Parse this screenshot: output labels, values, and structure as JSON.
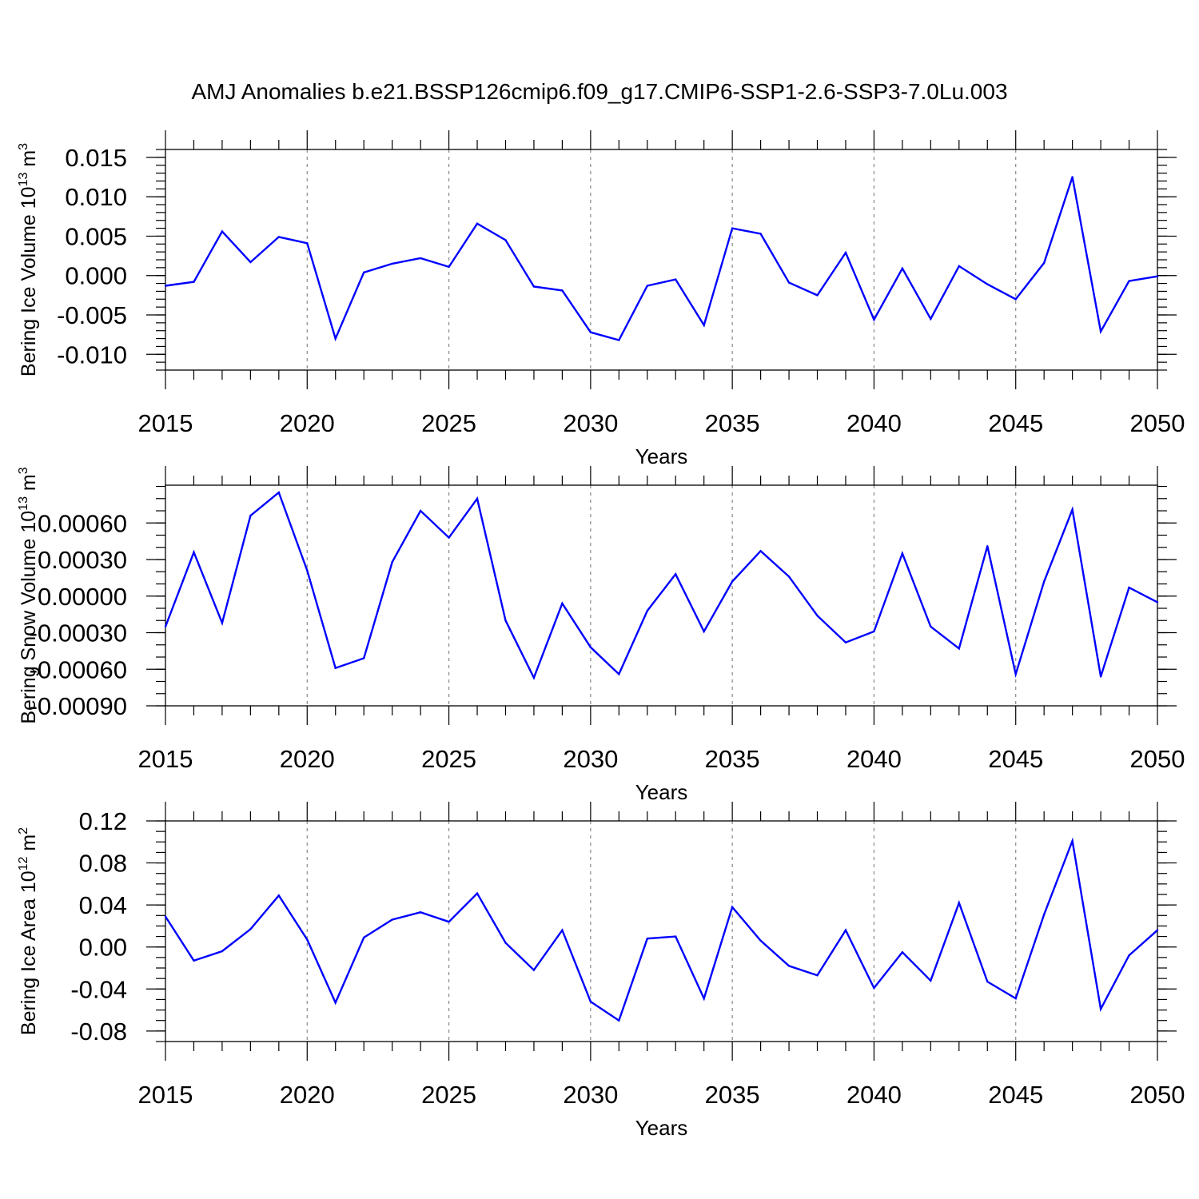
{
  "title": "AMJ Anomalies b.e21.BSSP126cmip6.f09_g17.CMIP6-SSP1-2.6-SSP3-7.0Lu.003",
  "colors": {
    "line": "#0000ff",
    "axis": "#000000",
    "grid": "#888888"
  },
  "chart_data": [
    {
      "type": "line",
      "ylabel": "Bering Ice Volume 10",
      "ylabel_sup": "13",
      "ylabel_unit": " m",
      "ylabel_unit_sup": "3",
      "xlabel": "Years",
      "xlim": [
        2015,
        2050
      ],
      "ylim": [
        -0.012,
        0.016
      ],
      "x_ticks": [
        "2015",
        "2020",
        "2025",
        "2030",
        "2035",
        "2040",
        "2045",
        "2050"
      ],
      "y_ticks": [
        "0.015",
        "0.010",
        "0.005",
        "0.000",
        "-0.005",
        "-0.010"
      ],
      "y_tick_values": [
        0.015,
        0.01,
        0.005,
        0.0,
        -0.005,
        -0.01
      ],
      "y_minor_step": 0.001,
      "x": [
        2015,
        2016,
        2017,
        2018,
        2019,
        2020,
        2021,
        2022,
        2023,
        2024,
        2025,
        2026,
        2027,
        2028,
        2029,
        2030,
        2031,
        2032,
        2033,
        2034,
        2035,
        2036,
        2037,
        2038,
        2039,
        2040,
        2041,
        2042,
        2043,
        2044,
        2045,
        2046,
        2047,
        2048,
        2049,
        2050
      ],
      "values": [
        -0.0013,
        -0.0008,
        0.0056,
        0.0017,
        0.0049,
        0.0041,
        -0.008,
        0.0004,
        0.0015,
        0.0022,
        0.0011,
        0.0066,
        0.0045,
        -0.0014,
        -0.0019,
        -0.0072,
        -0.0082,
        -0.0013,
        -0.0005,
        -0.0063,
        0.006,
        0.0053,
        -0.0009,
        -0.0025,
        0.0029,
        -0.0056,
        0.0009,
        -0.0055,
        0.0012,
        -0.0011,
        -0.003,
        0.0016,
        0.0125,
        -0.0071,
        -0.0007,
        -0.0001
      ]
    },
    {
      "type": "line",
      "ylabel": "Bering Snow Volume 10",
      "ylabel_sup": "13",
      "ylabel_unit": " m",
      "ylabel_unit_sup": "3",
      "xlabel": "Years",
      "xlim": [
        2015,
        2050
      ],
      "ylim": [
        -0.0009,
        0.00091
      ],
      "x_ticks": [
        "2015",
        "2020",
        "2025",
        "2030",
        "2035",
        "2040",
        "2045",
        "2050"
      ],
      "y_ticks": [
        "0.00060",
        "0.00030",
        "0.00000",
        "-0.00030",
        "-0.00060",
        "-0.00090"
      ],
      "y_tick_values": [
        0.0006,
        0.0003,
        0.0,
        -0.0003,
        -0.0006,
        -0.0009
      ],
      "y_minor_step": 0.0001,
      "x": [
        2015,
        2016,
        2017,
        2018,
        2019,
        2020,
        2021,
        2022,
        2023,
        2024,
        2025,
        2026,
        2027,
        2028,
        2029,
        2030,
        2031,
        2032,
        2033,
        2034,
        2035,
        2036,
        2037,
        2038,
        2039,
        2040,
        2041,
        2042,
        2043,
        2044,
        2045,
        2046,
        2047,
        2048,
        2049,
        2050
      ],
      "values": [
        -0.00025,
        0.00036,
        -0.00022,
        0.00066,
        0.00085,
        0.00021,
        -0.00059,
        -0.00051,
        0.00028,
        0.0007,
        0.00048,
        0.0008,
        -0.0002,
        -0.00067,
        -6e-05,
        -0.00042,
        -0.00064,
        -0.00012,
        0.00018,
        -0.00029,
        0.00012,
        0.00037,
        0.00016,
        -0.00016,
        -0.00038,
        -0.00029,
        0.00035,
        -0.00025,
        -0.00043,
        0.00041,
        -0.00064,
        0.00012,
        0.00071,
        -0.00066,
        7e-05,
        -5e-05
      ]
    },
    {
      "type": "line",
      "ylabel": "Bering Ice Area 10",
      "ylabel_sup": "12",
      "ylabel_unit": " m",
      "ylabel_unit_sup": "2",
      "xlabel": "Years",
      "xlim": [
        2015,
        2050
      ],
      "ylim": [
        -0.09,
        0.12
      ],
      "x_ticks": [
        "2015",
        "2020",
        "2025",
        "2030",
        "2035",
        "2040",
        "2045",
        "2050"
      ],
      "y_ticks": [
        "0.12",
        "0.08",
        "0.04",
        "0.00",
        "-0.04",
        "-0.08"
      ],
      "y_tick_values": [
        0.12,
        0.08,
        0.04,
        0.0,
        -0.04,
        -0.08
      ],
      "y_minor_step": 0.01,
      "x": [
        2015,
        2016,
        2017,
        2018,
        2019,
        2020,
        2021,
        2022,
        2023,
        2024,
        2025,
        2026,
        2027,
        2028,
        2029,
        2030,
        2031,
        2032,
        2033,
        2034,
        2035,
        2036,
        2037,
        2038,
        2039,
        2040,
        2041,
        2042,
        2043,
        2044,
        2045,
        2046,
        2047,
        2048,
        2049,
        2050
      ],
      "values": [
        0.029,
        -0.013,
        -0.004,
        0.017,
        0.049,
        0.007,
        -0.053,
        0.009,
        0.026,
        0.033,
        0.024,
        0.051,
        0.004,
        -0.022,
        0.016,
        -0.052,
        -0.07,
        0.008,
        0.01,
        -0.049,
        0.038,
        0.006,
        -0.018,
        -0.027,
        0.016,
        -0.039,
        -0.005,
        -0.032,
        0.042,
        -0.033,
        -0.049,
        0.031,
        0.101,
        -0.059,
        -0.008,
        0.016
      ]
    }
  ]
}
